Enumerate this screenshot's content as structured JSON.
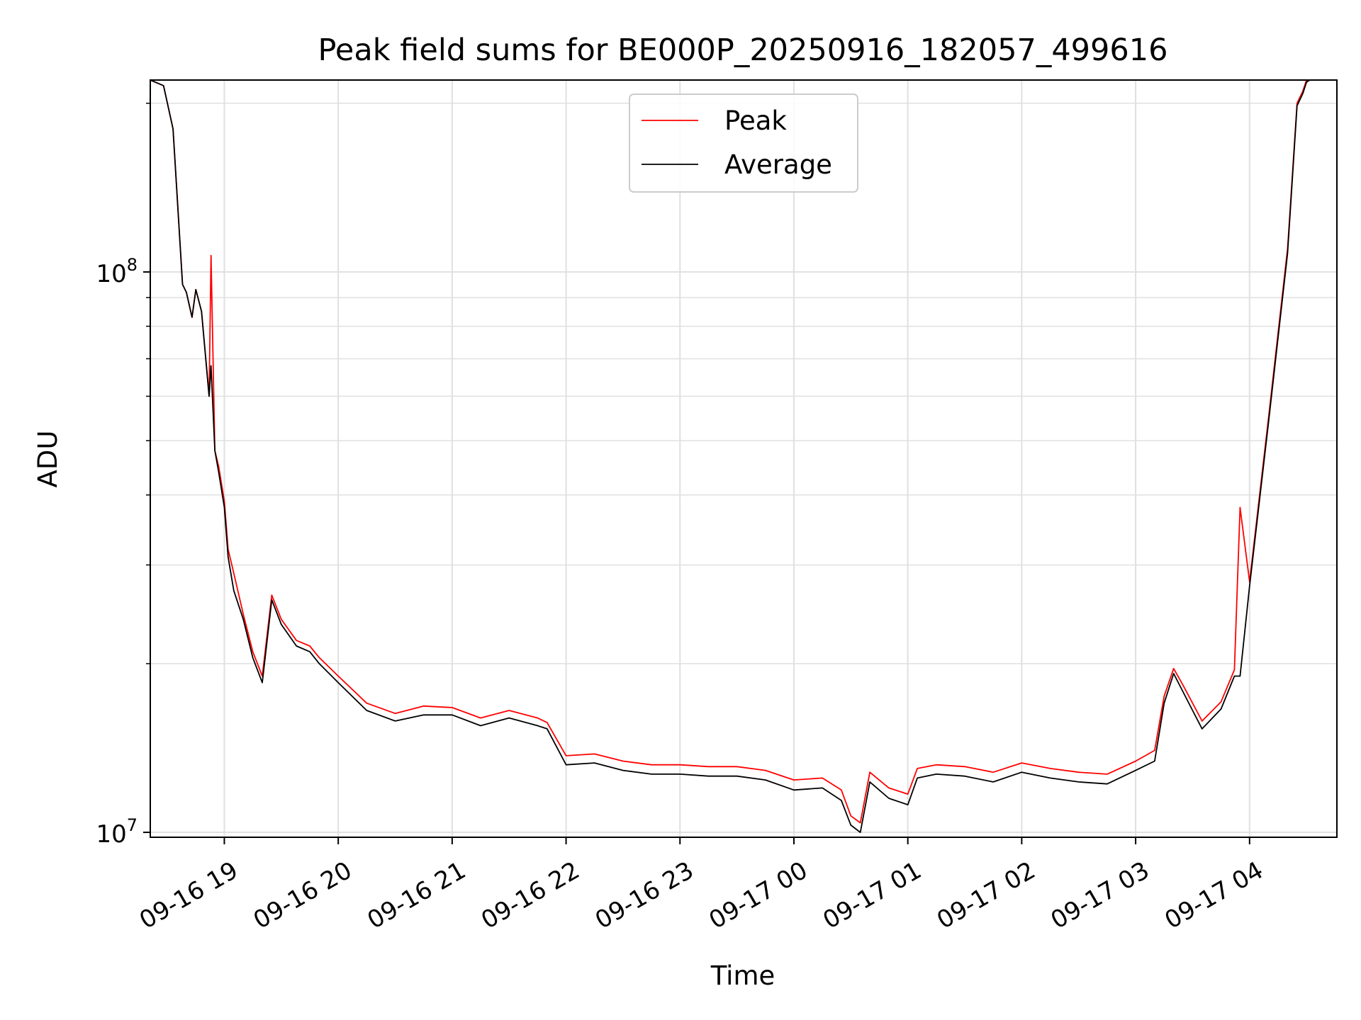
{
  "chart_data": {
    "type": "line",
    "title": "Peak field sums for BE000P_20250916_182057_499616",
    "xlabel": "Time",
    "ylabel": "ADU",
    "y_scale": "log",
    "ylim": [
      9800000,
      220000000
    ],
    "xlim": [
      "2025-09-16 18:21",
      "2025-09-17 04:46"
    ],
    "grid": true,
    "legend_position": "top-center",
    "x_ticks": [
      "09-16 19",
      "09-16 20",
      "09-16 21",
      "09-16 22",
      "09-16 23",
      "09-17 00",
      "09-17 01",
      "09-17 02",
      "09-17 03",
      "09-17 04"
    ],
    "y_ticks": [
      {
        "value": 10000000,
        "base": "10",
        "exp": "7"
      },
      {
        "value": 100000000,
        "base": "10",
        "exp": "8"
      }
    ],
    "x": [
      "2025-09-16 18:21",
      "2025-09-16 18:28",
      "2025-09-16 18:33",
      "2025-09-16 18:38",
      "2025-09-16 18:40",
      "2025-09-16 18:43",
      "2025-09-16 18:45",
      "2025-09-16 18:48",
      "2025-09-16 18:52",
      "2025-09-16 18:53",
      "2025-09-16 18:55",
      "2025-09-16 18:57",
      "2025-09-16 19:00",
      "2025-09-16 19:02",
      "2025-09-16 19:05",
      "2025-09-16 19:10",
      "2025-09-16 19:15",
      "2025-09-16 19:20",
      "2025-09-16 19:25",
      "2025-09-16 19:30",
      "2025-09-16 19:38",
      "2025-09-16 19:45",
      "2025-09-16 19:50",
      "2025-09-16 20:00",
      "2025-09-16 20:15",
      "2025-09-16 20:30",
      "2025-09-16 20:45",
      "2025-09-16 21:00",
      "2025-09-16 21:15",
      "2025-09-16 21:30",
      "2025-09-16 21:45",
      "2025-09-16 21:50",
      "2025-09-16 22:00",
      "2025-09-16 22:15",
      "2025-09-16 22:30",
      "2025-09-16 22:45",
      "2025-09-16 23:00",
      "2025-09-16 23:15",
      "2025-09-16 23:30",
      "2025-09-16 23:45",
      "2025-09-17 00:00",
      "2025-09-17 00:15",
      "2025-09-17 00:25",
      "2025-09-17 00:30",
      "2025-09-17 00:35",
      "2025-09-17 00:40",
      "2025-09-17 00:50",
      "2025-09-17 01:00",
      "2025-09-17 01:05",
      "2025-09-17 01:15",
      "2025-09-17 01:30",
      "2025-09-17 01:45",
      "2025-09-17 02:00",
      "2025-09-17 02:15",
      "2025-09-17 02:30",
      "2025-09-17 02:45",
      "2025-09-17 03:00",
      "2025-09-17 03:10",
      "2025-09-17 03:15",
      "2025-09-17 03:20",
      "2025-09-17 03:25",
      "2025-09-17 03:30",
      "2025-09-17 03:35",
      "2025-09-17 03:45",
      "2025-09-17 03:52",
      "2025-09-17 03:55",
      "2025-09-17 04:00",
      "2025-09-17 04:10",
      "2025-09-17 04:20",
      "2025-09-17 04:25",
      "2025-09-17 04:28",
      "2025-09-17 04:30",
      "2025-09-17 04:35",
      "2025-09-17 04:38"
    ],
    "series": [
      {
        "name": "Peak",
        "color": "#ff0000",
        "values": [
          220000000,
          215000000,
          180000000,
          95000000,
          92000000,
          83000000,
          93000000,
          85000000,
          60000000,
          107000000,
          48000000,
          45000000,
          39000000,
          32000000,
          29000000,
          24500000,
          21000000,
          19000000,
          26500000,
          24000000,
          22000000,
          21500000,
          20500000,
          19000000,
          17000000,
          16300000,
          16800000,
          16700000,
          16000000,
          16500000,
          16000000,
          15700000,
          13700000,
          13800000,
          13400000,
          13200000,
          13200000,
          13100000,
          13100000,
          12900000,
          12400000,
          12500000,
          11900000,
          10700000,
          10400000,
          12800000,
          12000000,
          11700000,
          13000000,
          13200000,
          13100000,
          12800000,
          13300000,
          13000000,
          12800000,
          12700000,
          13400000,
          14000000,
          17500000,
          19600000,
          18300000,
          17000000,
          15800000,
          17100000,
          19500000,
          38000000,
          28000000,
          55000000,
          110000000,
          200000000,
          210000000,
          220000000,
          225000000,
          225000000
        ]
      },
      {
        "name": "Average",
        "color": "#000000",
        "values": [
          220000000,
          215000000,
          180000000,
          95000000,
          92000000,
          83000000,
          93000000,
          85000000,
          60000000,
          68000000,
          48000000,
          44000000,
          38000000,
          31000000,
          27000000,
          24000000,
          20500000,
          18500000,
          26000000,
          23500000,
          21500000,
          21000000,
          20000000,
          18500000,
          16500000,
          15800000,
          16200000,
          16200000,
          15500000,
          16000000,
          15500000,
          15300000,
          13200000,
          13300000,
          12900000,
          12700000,
          12700000,
          12600000,
          12600000,
          12400000,
          11900000,
          12000000,
          11400000,
          10300000,
          10000000,
          12300000,
          11500000,
          11200000,
          12500000,
          12700000,
          12600000,
          12300000,
          12800000,
          12500000,
          12300000,
          12200000,
          12900000,
          13400000,
          17000000,
          19200000,
          17800000,
          16500000,
          15300000,
          16600000,
          19000000,
          19000000,
          27500000,
          54000000,
          108000000,
          198000000,
          208000000,
          218000000,
          224000000,
          224000000
        ]
      }
    ]
  }
}
